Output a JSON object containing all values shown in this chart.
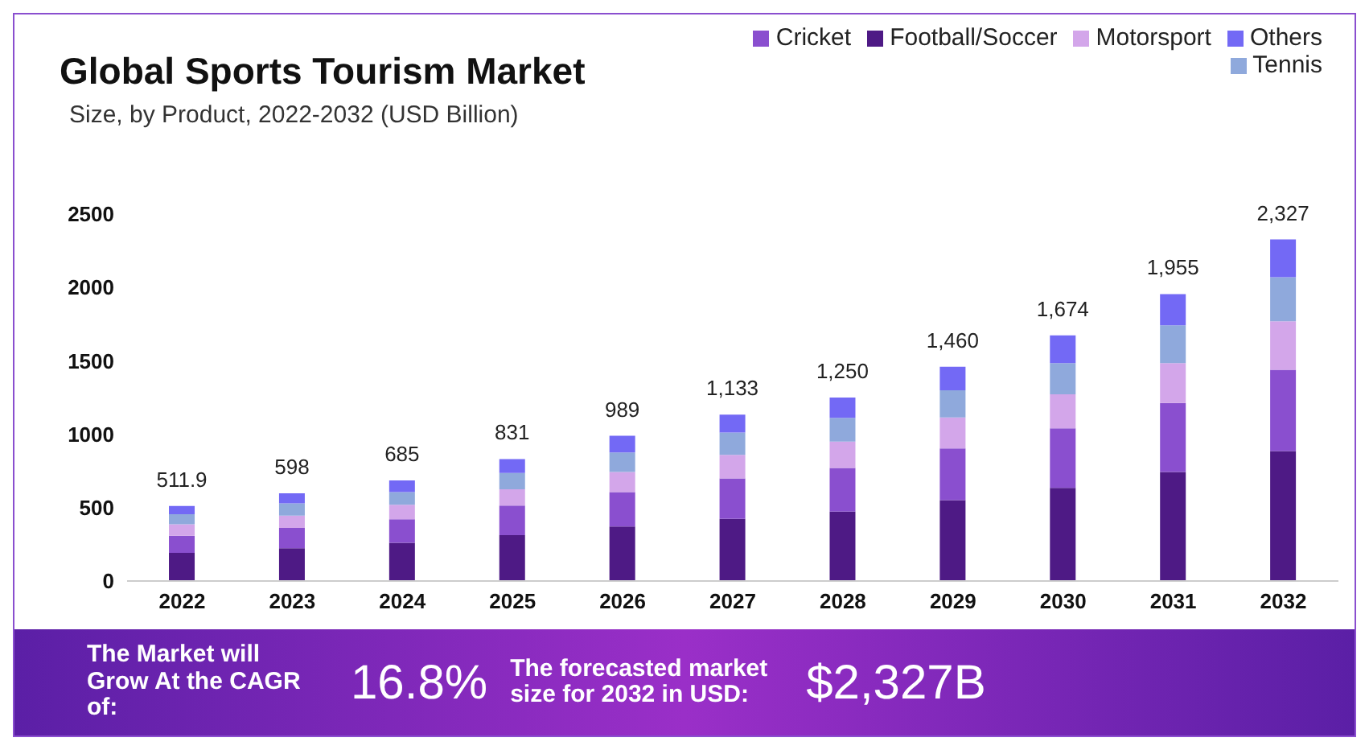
{
  "chart_data": {
    "type": "bar",
    "title": "Global Sports Tourism Market",
    "subtitle": "Size, by Product, 2022-2032 (USD Billion)",
    "categories": [
      "2022",
      "2023",
      "2024",
      "2025",
      "2026",
      "2027",
      "2028",
      "2029",
      "2030",
      "2031",
      "2032"
    ],
    "stacked": true,
    "series": [
      {
        "name": "Football/Soccer",
        "color": "#4e1a85",
        "values": [
          192,
          223,
          260,
          312,
          371,
          424,
          473,
          551,
          634,
          743,
          885
        ]
      },
      {
        "name": "Cricket",
        "color": "#8a4fcf",
        "values": [
          117,
          139,
          161,
          202,
          235,
          275,
          297,
          352,
          406,
          470,
          554
        ]
      },
      {
        "name": "Motorsport",
        "color": "#d3a6ea",
        "values": [
          78,
          84,
          99,
          111,
          137,
          161,
          180,
          211,
          232,
          272,
          331
        ]
      },
      {
        "name": "Tennis",
        "color": "#8fa9dc",
        "values": [
          68,
          83,
          86,
          111,
          133,
          152,
          161,
          185,
          213,
          257,
          300
        ]
      },
      {
        "name": "Others",
        "color": "#7369f5",
        "values": [
          56.9,
          69,
          79,
          95,
          113,
          121,
          139,
          161,
          189,
          213,
          257
        ]
      }
    ],
    "totals": [
      "511.9",
      "598",
      "685",
      "831",
      "989",
      "1,133",
      "1,250",
      "1,460",
      "1,674",
      "1,955",
      "2,327"
    ],
    "ylim": [
      0,
      2500
    ],
    "yticks": [
      0,
      500,
      1000,
      1500,
      2000,
      2500
    ],
    "grid": false,
    "legend": "top right",
    "annotations": [
      "The Market will Grow At the CAGR of:",
      "16.8%",
      "The forecasted market size for 2032 in USD:",
      "$2,327B"
    ]
  }
}
